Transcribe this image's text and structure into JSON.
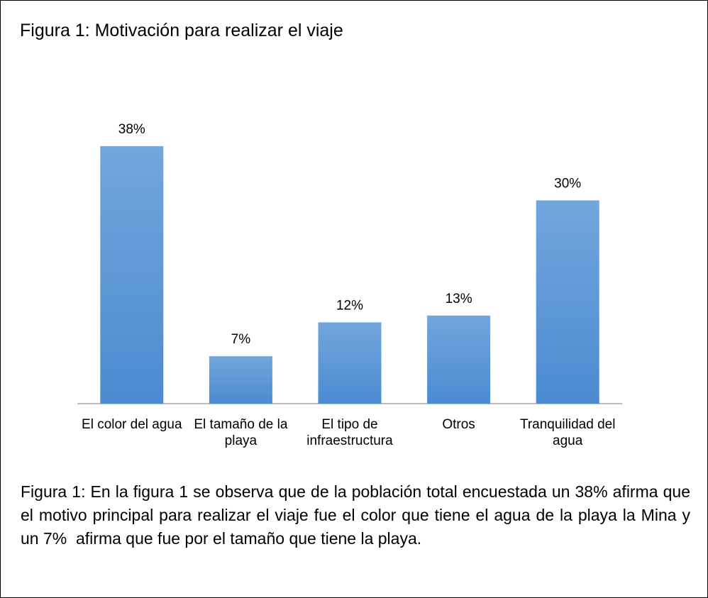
{
  "chart_data": {
    "type": "bar",
    "title": "Figura 1: Motivación para realizar el viaje",
    "categories": [
      "El color del agua",
      "El tamaño de la playa",
      "El tipo de infraestructura",
      "Otros",
      "Tranquilidad del agua"
    ],
    "values": [
      38,
      7,
      12,
      13,
      30
    ],
    "value_labels": [
      "38%",
      "7%",
      "12%",
      "13%",
      "30%"
    ],
    "color": "#5b9bd5"
  },
  "caption": "Figura 1: En la figura 1 se observa que de la población total encuestada un 38% afirma que el motivo principal para realizar el viaje fue el color que tiene el agua de la playa la Mina y  un 7%  afirma que fue por el tamaño que tiene la playa."
}
